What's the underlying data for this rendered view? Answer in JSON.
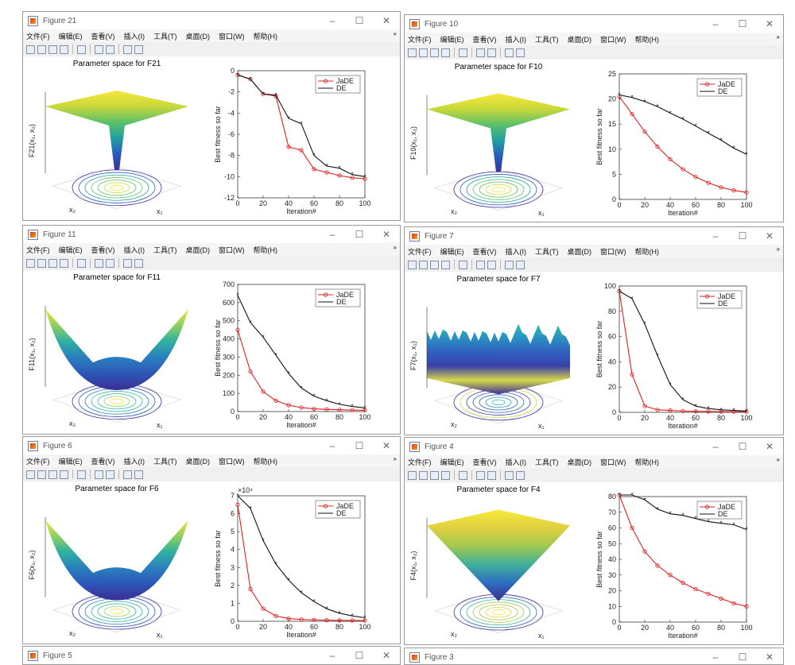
{
  "menu": [
    "文件(F)",
    "编辑(E)",
    "查看(V)",
    "插入(I)",
    "工具(T)",
    "桌面(D)",
    "窗口(W)",
    "帮助(H)"
  ],
  "controls": {
    "minimize": "–",
    "maximize": "☐",
    "close": "✕"
  },
  "legend": {
    "jade": "JaDE",
    "de": "DE"
  },
  "common": {
    "x_label": "Iteration#",
    "y_label": "Best fitness so far"
  },
  "figures": [
    {
      "key": "f21",
      "title": "Figure 21",
      "surface_title": "Parameter space for F21",
      "z_label": "F21(x₁, x₂)",
      "chart": {
        "type": "line",
        "ylim": [
          -12,
          0
        ],
        "yticks": [
          "0",
          "-2",
          "-4",
          "-6",
          "-8",
          "-10",
          "-12"
        ],
        "xticks": [
          "0",
          "20",
          "40",
          "60",
          "80",
          "100"
        ],
        "xlabel": "Iteration#",
        "ylabel": "Best fitness so far",
        "series": [
          {
            "name": "JaDE",
            "values": [
              -0.4,
              -0.8,
              -2.2,
              -2.4,
              -7.2,
              -7.5,
              -9.3,
              -9.6,
              -9.9,
              -10.1,
              -10.2
            ]
          },
          {
            "name": "DE",
            "values": [
              -0.4,
              -0.8,
              -2.2,
              -2.3,
              -4.5,
              -5.0,
              -8.0,
              -9.0,
              -9.2,
              -9.8,
              -10.0
            ]
          }
        ]
      }
    },
    {
      "key": "f10",
      "title": "Figure 10",
      "surface_title": "Parameter space for F10",
      "z_label": "F10(x₁, x₂)",
      "chart": {
        "type": "line",
        "ylim": [
          0,
          25
        ],
        "yticks": [
          "25",
          "20",
          "15",
          "10",
          "5",
          "0"
        ],
        "xticks": [
          "0",
          "20",
          "40",
          "60",
          "80",
          "100"
        ],
        "xlabel": "Iteration#",
        "ylabel": "Best fitness so far",
        "series": [
          {
            "name": "JaDE",
            "values": [
              20.5,
              17,
              13.5,
              10.5,
              8,
              6,
              4.5,
              3.3,
              2.4,
              1.8,
              1.4
            ]
          },
          {
            "name": "DE",
            "values": [
              20.8,
              20.3,
              19.5,
              18.5,
              17.2,
              16,
              14.6,
              13.2,
              11.8,
              10.2,
              9.0
            ]
          }
        ]
      }
    },
    {
      "key": "f11",
      "title": "Figure 11",
      "surface_title": "Parameter space for F11",
      "z_label": "F11(x₁, x₂)",
      "chart": {
        "type": "line",
        "ylim": [
          0,
          700
        ],
        "yticks": [
          "700",
          "600",
          "500",
          "400",
          "300",
          "200",
          "100",
          "0"
        ],
        "xticks": [
          "0",
          "20",
          "40",
          "60",
          "80",
          "100"
        ],
        "xlabel": "Iteration#",
        "ylabel": "Best fitness so far",
        "series": [
          {
            "name": "JaDE",
            "values": [
              450,
              220,
              110,
              60,
              35,
              22,
              15,
              12,
              10,
              8,
              7
            ]
          },
          {
            "name": "DE",
            "values": [
              640,
              490,
              410,
              310,
              210,
              130,
              85,
              60,
              40,
              28,
              20
            ]
          }
        ]
      }
    },
    {
      "key": "f7",
      "title": "Figure 7",
      "surface_title": "Parameter space for F7",
      "z_label": "F7(x₁, x₂)",
      "chart": {
        "type": "line",
        "ylim": [
          0,
          100
        ],
        "yticks": [
          "100",
          "80",
          "60",
          "40",
          "20",
          "0"
        ],
        "xticks": [
          "0",
          "20",
          "40",
          "60",
          "80",
          "100"
        ],
        "xlabel": "Iteration#",
        "ylabel": "Best fitness so far",
        "series": [
          {
            "name": "JaDE",
            "values": [
              96,
              30,
              5,
              2,
              1.5,
              1,
              0.8,
              0.7,
              0.6,
              0.5,
              0.5
            ]
          },
          {
            "name": "DE",
            "values": [
              96,
              90,
              70,
              45,
              22,
              10,
              5,
              3,
              2,
              1.5,
              1
            ]
          }
        ]
      }
    },
    {
      "key": "f6",
      "title": "Figure 6",
      "surface_title": "Parameter space for F6",
      "z_label": "F6(x₁, x₂)",
      "chart": {
        "type": "line",
        "ylim": [
          0,
          7
        ],
        "yticks": [
          "7",
          "6",
          "5",
          "4",
          "3",
          "2",
          "1",
          "0"
        ],
        "xticks": [
          "0",
          "20",
          "40",
          "60",
          "80",
          "100"
        ],
        "xlabel": "Iteration#",
        "ylabel": "Best fitness so far",
        "y_multiplier": "×10⁴",
        "series": [
          {
            "name": "JaDE",
            "values": [
              6.5,
              1.8,
              0.7,
              0.3,
              0.15,
              0.1,
              0.08,
              0.06,
              0.05,
              0.05,
              0.04
            ]
          },
          {
            "name": "DE",
            "values": [
              7,
              6.3,
              4.5,
              3.2,
              2.3,
              1.6,
              1.1,
              0.7,
              0.45,
              0.3,
              0.2
            ]
          }
        ]
      }
    },
    {
      "key": "f4",
      "title": "Figure 4",
      "surface_title": "Parameter space for F4",
      "z_label": "F4(x₁, x₂)",
      "chart": {
        "type": "line",
        "ylim": [
          0,
          80
        ],
        "yticks": [
          "80",
          "70",
          "60",
          "50",
          "40",
          "30",
          "20",
          "10",
          "0"
        ],
        "xticks": [
          "0",
          "20",
          "40",
          "60",
          "80",
          "100"
        ],
        "xlabel": "Iteration#",
        "ylabel": "Best fitness so far",
        "series": [
          {
            "name": "JaDE",
            "values": [
              81,
              60,
              45,
              36,
              30,
              25,
              21,
              18,
              15,
              12,
              10
            ]
          },
          {
            "name": "DE",
            "values": [
              81,
              81,
              78,
              72,
              69,
              68,
              66,
              64,
              63,
              62,
              59
            ]
          }
        ]
      }
    }
  ],
  "partial": [
    {
      "title": "Figure 5"
    },
    {
      "title": "Figure 3"
    }
  ]
}
